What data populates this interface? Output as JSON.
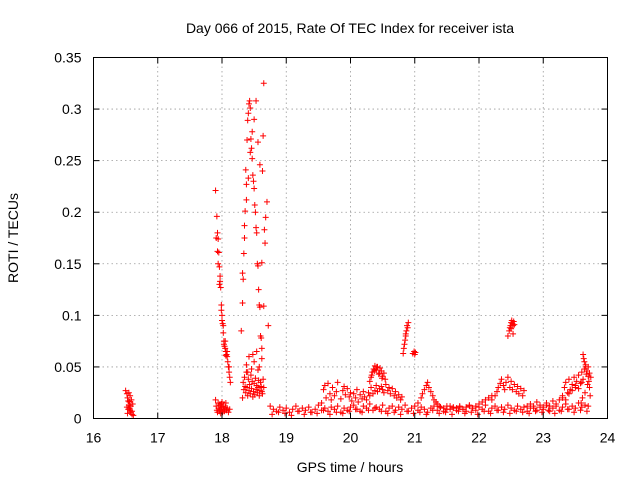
{
  "chart_data": {
    "type": "scatter",
    "title": "Day 066 of 2015, Rate Of TEC Index for receiver ista",
    "xlabel": "GPS time / hours",
    "ylabel": "ROTI / TECUs",
    "xlim": [
      16,
      24
    ],
    "ylim": [
      0,
      0.35
    ],
    "x_ticks": [
      16,
      17,
      18,
      19,
      20,
      21,
      22,
      23,
      24
    ],
    "y_ticks": [
      0,
      0.05,
      0.1,
      0.15,
      0.2,
      0.25,
      0.3,
      0.35
    ],
    "x_tick_labels": [
      "16",
      "17",
      "18",
      "19",
      "20",
      "21",
      "22",
      "23",
      "24"
    ],
    "y_tick_labels": [
      "0",
      "0.05",
      "0.1",
      "0.15",
      "0.2",
      "0.25",
      "0.3",
      "0.35"
    ],
    "grid": true,
    "marker": "+",
    "color": "#ff0000",
    "series": [
      {
        "name": "ista",
        "x": [
          16.5,
          16.52,
          16.53,
          16.54,
          16.55,
          16.56,
          16.57,
          16.58,
          16.6,
          16.62,
          16.55,
          16.57,
          16.59,
          16.61,
          16.52,
          16.54,
          16.58,
          16.6,
          16.56,
          16.53,
          17.9,
          17.92,
          17.93,
          17.94,
          17.95,
          17.96,
          17.97,
          17.98,
          17.99,
          18.0,
          18.01,
          18.02,
          18.03,
          18.04,
          18.05,
          18.06,
          18.07,
          18.08,
          18.09,
          18.1,
          18.11,
          18.12,
          18.13,
          17.91,
          17.94,
          17.96,
          17.99,
          18.02,
          18.05,
          18.08,
          18.11,
          17.93,
          17.97,
          18.0,
          18.03,
          18.06,
          17.9,
          17.91,
          17.92,
          17.93,
          17.94,
          17.95,
          17.96,
          17.97,
          17.98,
          17.98,
          17.99,
          17.99,
          18.0,
          18.0,
          18.01,
          18.02,
          18.03,
          18.04,
          18.05,
          18.06,
          18.07,
          18.08,
          18.1,
          18.12,
          18.3,
          18.32,
          18.33,
          18.34,
          18.35,
          18.36,
          18.37,
          18.38,
          18.39,
          18.4,
          18.41,
          18.42,
          18.43,
          18.44,
          18.45,
          18.46,
          18.47,
          18.48,
          18.49,
          18.5,
          18.51,
          18.52,
          18.53,
          18.54,
          18.55,
          18.56,
          18.57,
          18.58,
          18.59,
          18.6,
          18.61,
          18.62,
          18.63,
          18.64,
          18.65,
          18.66,
          18.67,
          18.68,
          18.7,
          18.72,
          18.32,
          18.35,
          18.38,
          18.41,
          18.44,
          18.47,
          18.5,
          18.53,
          18.56,
          18.59,
          18.62,
          18.65,
          18.32,
          18.33,
          18.34,
          18.35,
          18.36,
          18.37,
          18.38,
          18.39,
          18.4,
          18.41,
          18.42,
          18.43,
          18.44,
          18.45,
          18.46,
          18.47,
          18.48,
          18.49,
          18.5,
          18.51,
          18.52,
          18.53,
          18.54,
          18.55,
          18.56,
          18.57,
          18.58,
          18.59,
          18.6,
          18.61,
          18.62,
          18.63,
          18.64,
          18.65,
          18.38,
          18.42,
          18.46,
          18.5,
          18.54,
          18.58,
          18.62,
          18.4,
          18.48,
          18.56,
          18.75,
          18.8,
          18.85,
          18.9,
          18.95,
          19.0,
          19.05,
          19.1,
          19.15,
          19.2,
          19.25,
          19.3,
          19.35,
          19.4,
          19.45,
          19.5,
          19.55,
          19.6,
          19.65,
          19.7,
          19.75,
          19.8,
          19.85,
          19.9,
          19.95,
          20.0,
          20.05,
          20.1,
          20.15,
          20.2,
          20.25,
          20.3,
          20.35,
          20.4,
          20.45,
          20.5,
          20.55,
          20.6,
          20.65,
          20.7,
          20.75,
          20.8,
          20.85,
          20.9,
          20.95,
          21.0,
          21.05,
          21.1,
          21.15,
          21.2,
          21.25,
          21.3,
          21.35,
          21.4,
          21.45,
          21.5,
          21.55,
          21.6,
          21.65,
          21.7,
          21.75,
          21.8,
          21.85,
          21.9,
          21.95,
          22.0,
          22.05,
          22.1,
          22.15,
          22.2,
          22.25,
          22.3,
          22.35,
          22.4,
          22.45,
          22.5,
          22.55,
          22.6,
          22.65,
          22.7,
          22.75,
          22.8,
          22.85,
          22.9,
          22.95,
          23.0,
          23.05,
          23.1,
          23.15,
          23.2,
          23.25,
          23.3,
          23.35,
          23.4,
          23.45,
          23.5,
          23.55,
          23.6,
          23.65,
          23.7,
          18.78,
          18.88,
          18.98,
          19.08,
          19.18,
          19.28,
          19.38,
          19.48,
          19.58,
          19.68,
          19.78,
          19.88,
          19.98,
          20.08,
          20.18,
          20.28,
          20.38,
          20.48,
          20.58,
          20.68,
          20.78,
          20.88,
          20.98,
          21.08,
          21.18,
          21.28,
          21.38,
          21.48,
          21.58,
          21.68,
          21.78,
          21.88,
          21.98,
          22.08,
          22.18,
          22.28,
          22.38,
          22.48,
          22.58,
          22.68,
          22.78,
          22.88,
          22.98,
          23.08,
          23.18,
          23.28,
          23.38,
          23.48,
          23.58,
          23.68,
          19.55,
          19.58,
          19.6,
          19.62,
          19.65,
          19.68,
          19.7,
          19.72,
          19.75,
          19.78,
          19.8,
          19.85,
          19.88,
          19.9,
          19.92,
          19.95,
          19.98,
          20.0,
          20.02,
          20.05,
          20.08,
          20.1,
          20.12,
          20.15,
          20.18,
          20.2,
          20.22,
          20.25,
          20.28,
          20.3,
          20.32,
          20.35,
          20.38,
          20.4,
          20.42,
          20.45,
          20.48,
          20.5,
          20.52,
          20.55,
          20.58,
          20.6,
          20.62,
          20.65,
          20.68,
          20.7,
          20.72,
          20.75,
          20.78,
          20.8,
          20.3,
          20.32,
          20.34,
          20.36,
          20.38,
          20.4,
          20.42,
          20.44,
          20.46,
          20.48,
          20.5,
          20.52,
          20.54,
          20.33,
          20.37,
          20.41,
          20.45,
          20.49,
          20.82,
          20.84,
          20.86,
          20.88,
          20.9,
          20.85,
          20.87,
          20.89,
          20.83,
          20.86,
          20.97,
          20.99,
          21.0,
          21.01,
          21.05,
          21.1,
          21.12,
          21.15,
          21.18,
          21.2,
          21.22,
          21.25,
          21.28,
          21.3,
          21.33,
          21.35,
          21.38,
          21.4,
          21.45,
          21.5,
          21.55,
          21.6,
          21.65,
          21.7,
          21.75,
          21.8,
          21.85,
          21.9,
          21.95,
          22.0,
          22.05,
          22.1,
          22.15,
          22.2,
          22.2,
          22.25,
          22.28,
          22.3,
          22.33,
          22.35,
          22.38,
          22.4,
          22.42,
          22.45,
          22.48,
          22.5,
          22.52,
          22.55,
          22.58,
          22.6,
          22.62,
          22.65,
          22.68,
          22.7,
          22.45,
          22.47,
          22.48,
          22.49,
          22.5,
          22.51,
          22.52,
          22.53,
          22.54,
          22.55,
          22.5,
          22.53,
          22.75,
          22.8,
          22.85,
          22.9,
          22.95,
          23.0,
          23.05,
          23.1,
          23.15,
          23.2,
          23.25,
          23.3,
          23.3,
          23.33,
          23.35,
          23.38,
          23.4,
          23.42,
          23.45,
          23.48,
          23.5,
          23.52,
          23.55,
          23.58,
          23.6,
          23.62,
          23.64,
          23.66,
          23.68,
          23.7,
          23.72,
          23.74,
          23.35,
          23.4,
          23.45,
          23.5,
          23.55,
          23.6,
          23.62,
          23.64,
          23.66,
          23.68,
          23.7,
          23.72,
          23.63,
          23.67,
          23.71,
          23.65,
          23.69,
          23.61,
          23.73,
          23.59
        ],
        "y": [
          0.027,
          0.024,
          0.02,
          0.017,
          0.013,
          0.01,
          0.008,
          0.006,
          0.004,
          0.003,
          0.025,
          0.022,
          0.018,
          0.014,
          0.011,
          0.009,
          0.012,
          0.007,
          0.016,
          0.005,
          0.221,
          0.196,
          0.18,
          0.174,
          0.161,
          0.147,
          0.133,
          0.127,
          0.105,
          0.1,
          0.092,
          0.083,
          0.075,
          0.07,
          0.068,
          0.065,
          0.062,
          0.06,
          0.055,
          0.05,
          0.045,
          0.04,
          0.035,
          0.175,
          0.15,
          0.13,
          0.11,
          0.09,
          0.075,
          0.065,
          0.05,
          0.162,
          0.138,
          0.095,
          0.072,
          0.061,
          0.018,
          0.012,
          0.008,
          0.006,
          0.015,
          0.01,
          0.007,
          0.013,
          0.009,
          0.005,
          0.011,
          0.014,
          0.008,
          0.016,
          0.006,
          0.012,
          0.009,
          0.007,
          0.011,
          0.015,
          0.008,
          0.01,
          0.006,
          0.009,
          0.085,
          0.112,
          0.135,
          0.16,
          0.187,
          0.201,
          0.241,
          0.227,
          0.27,
          0.289,
          0.296,
          0.305,
          0.308,
          0.301,
          0.271,
          0.262,
          0.252,
          0.236,
          0.23,
          0.223,
          0.207,
          0.2,
          0.185,
          0.18,
          0.15,
          0.148,
          0.125,
          0.11,
          0.108,
          0.08,
          0.078,
          0.068,
          0.24,
          0.274,
          0.325,
          0.183,
          0.17,
          0.195,
          0.21,
          0.09,
          0.141,
          0.175,
          0.212,
          0.233,
          0.258,
          0.278,
          0.29,
          0.308,
          0.268,
          0.246,
          0.151,
          0.109,
          0.02,
          0.035,
          0.028,
          0.04,
          0.031,
          0.025,
          0.045,
          0.03,
          0.022,
          0.038,
          0.027,
          0.033,
          0.024,
          0.042,
          0.029,
          0.036,
          0.021,
          0.026,
          0.034,
          0.023,
          0.039,
          0.028,
          0.032,
          0.025,
          0.03,
          0.037,
          0.022,
          0.027,
          0.035,
          0.031,
          0.026,
          0.024,
          0.038,
          0.03,
          0.052,
          0.06,
          0.048,
          0.055,
          0.065,
          0.05,
          0.058,
          0.045,
          0.062,
          0.047,
          0.012,
          0.009,
          0.007,
          0.011,
          0.008,
          0.01,
          0.006,
          0.009,
          0.012,
          0.007,
          0.01,
          0.008,
          0.011,
          0.006,
          0.009,
          0.013,
          0.008,
          0.01,
          0.007,
          0.011,
          0.009,
          0.012,
          0.006,
          0.01,
          0.008,
          0.011,
          0.013,
          0.009,
          0.007,
          0.012,
          0.01,
          0.014,
          0.008,
          0.011,
          0.009,
          0.013,
          0.007,
          0.01,
          0.012,
          0.008,
          0.011,
          0.009,
          0.013,
          0.007,
          0.01,
          0.012,
          0.008,
          0.011,
          0.009,
          0.006,
          0.01,
          0.012,
          0.008,
          0.011,
          0.007,
          0.009,
          0.012,
          0.01,
          0.008,
          0.011,
          0.009,
          0.007,
          0.012,
          0.01,
          0.008,
          0.011,
          0.009,
          0.013,
          0.007,
          0.01,
          0.012,
          0.008,
          0.011,
          0.009,
          0.013,
          0.01,
          0.008,
          0.012,
          0.009,
          0.011,
          0.007,
          0.01,
          0.012,
          0.008,
          0.011,
          0.009,
          0.013,
          0.007,
          0.01,
          0.012,
          0.008,
          0.011,
          0.014,
          0.009,
          0.012,
          0.01,
          0.015,
          0.011,
          0.013,
          0.012,
          0.004,
          0.006,
          0.005,
          0.003,
          0.007,
          0.004,
          0.006,
          0.005,
          0.008,
          0.004,
          0.006,
          0.005,
          0.007,
          0.009,
          0.006,
          0.008,
          0.01,
          0.007,
          0.005,
          0.006,
          0.004,
          0.007,
          0.005,
          0.006,
          0.004,
          0.008,
          0.005,
          0.006,
          0.004,
          0.007,
          0.005,
          0.006,
          0.004,
          0.007,
          0.005,
          0.008,
          0.006,
          0.005,
          0.007,
          0.006,
          0.005,
          0.007,
          0.006,
          0.008,
          0.005,
          0.007,
          0.009,
          0.006,
          0.008,
          0.007,
          0.015,
          0.028,
          0.032,
          0.02,
          0.034,
          0.024,
          0.018,
          0.03,
          0.022,
          0.026,
          0.035,
          0.019,
          0.027,
          0.031,
          0.023,
          0.029,
          0.021,
          0.025,
          0.017,
          0.024,
          0.02,
          0.028,
          0.016,
          0.023,
          0.019,
          0.026,
          0.021,
          0.018,
          0.025,
          0.022,
          0.03,
          0.024,
          0.027,
          0.032,
          0.026,
          0.029,
          0.031,
          0.028,
          0.025,
          0.033,
          0.027,
          0.03,
          0.024,
          0.029,
          0.022,
          0.026,
          0.02,
          0.023,
          0.018,
          0.021,
          0.036,
          0.04,
          0.045,
          0.048,
          0.051,
          0.047,
          0.05,
          0.043,
          0.049,
          0.046,
          0.041,
          0.044,
          0.038,
          0.042,
          0.046,
          0.05,
          0.044,
          0.039,
          0.063,
          0.072,
          0.08,
          0.09,
          0.093,
          0.076,
          0.085,
          0.088,
          0.068,
          0.082,
          0.063,
          0.065,
          0.062,
          0.064,
          0.015,
          0.02,
          0.024,
          0.028,
          0.032,
          0.035,
          0.03,
          0.026,
          0.022,
          0.018,
          0.016,
          0.014,
          0.012,
          0.011,
          0.01,
          0.012,
          0.009,
          0.011,
          0.01,
          0.012,
          0.009,
          0.011,
          0.013,
          0.01,
          0.012,
          0.014,
          0.016,
          0.018,
          0.02,
          0.022,
          0.018,
          0.022,
          0.026,
          0.03,
          0.034,
          0.038,
          0.032,
          0.028,
          0.035,
          0.04,
          0.03,
          0.036,
          0.028,
          0.033,
          0.026,
          0.031,
          0.024,
          0.029,
          0.022,
          0.027,
          0.08,
          0.085,
          0.088,
          0.09,
          0.093,
          0.095,
          0.092,
          0.09,
          0.094,
          0.091,
          0.087,
          0.082,
          0.012,
          0.014,
          0.01,
          0.016,
          0.013,
          0.011,
          0.015,
          0.012,
          0.017,
          0.014,
          0.018,
          0.02,
          0.022,
          0.03,
          0.035,
          0.025,
          0.038,
          0.028,
          0.033,
          0.04,
          0.03,
          0.036,
          0.042,
          0.034,
          0.045,
          0.038,
          0.048,
          0.052,
          0.046,
          0.05,
          0.044,
          0.04,
          0.018,
          0.024,
          0.027,
          0.032,
          0.029,
          0.035,
          0.062,
          0.055,
          0.05,
          0.046,
          0.041,
          0.03,
          0.058,
          0.043,
          0.036,
          0.025,
          0.033,
          0.02,
          0.022,
          0.015
        ]
      }
    ]
  }
}
